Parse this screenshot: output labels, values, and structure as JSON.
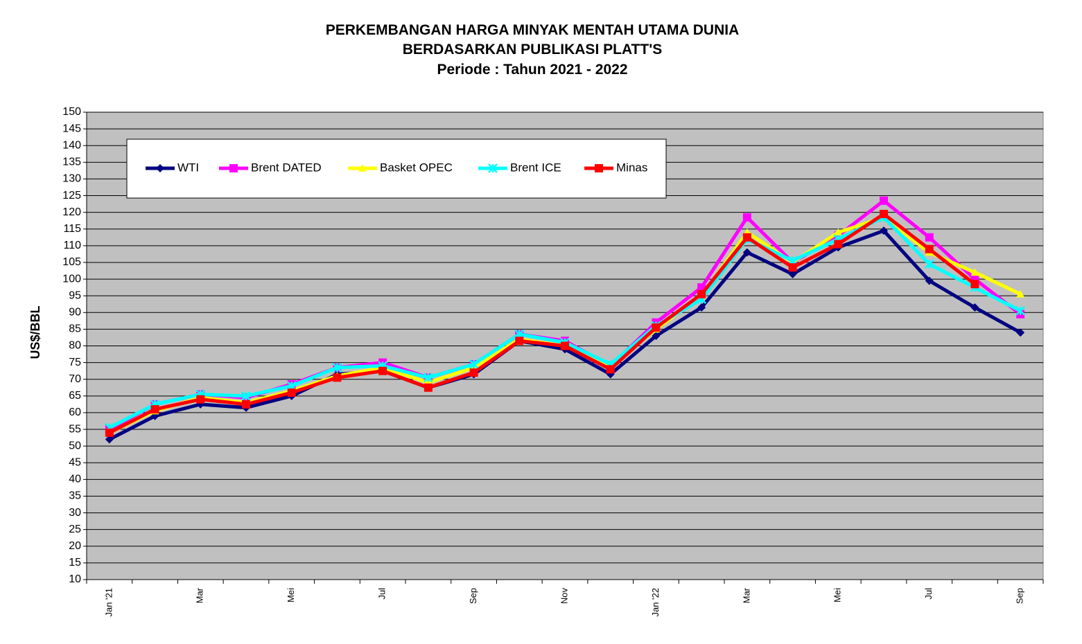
{
  "chart_data": {
    "type": "line",
    "title": [
      "PERKEMBANGAN HARGA MINYAK MENTAH UTAMA DUNIA",
      "BERDASARKAN PUBLIKASI PLATT'S",
      "Periode : Tahun 2021 - 2022"
    ],
    "y_label": "US$/BBL",
    "categories": [
      "Jan '21",
      null,
      "Mar",
      null,
      "Mei",
      null,
      "Jul",
      null,
      "Sep",
      null,
      "Nov",
      null,
      "Jan '22",
      null,
      "Mar",
      null,
      "Mei",
      null,
      "Jul",
      null,
      "Sep"
    ],
    "ylim": [
      10,
      150
    ],
    "yticks": [
      10,
      15,
      20,
      25,
      30,
      35,
      40,
      45,
      50,
      55,
      60,
      65,
      70,
      75,
      80,
      85,
      90,
      95,
      100,
      105,
      110,
      115,
      120,
      125,
      130,
      135,
      140,
      145,
      150
    ],
    "grid": true,
    "plot_background": "#c0c0c0",
    "legend_position": "top-left",
    "series": [
      {
        "name": "WTI",
        "color": "#000080",
        "marker": "diamond",
        "values": [
          52,
          59,
          62.5,
          61.5,
          65,
          71.5,
          72.5,
          67.5,
          71.5,
          81.5,
          79,
          71.5,
          83,
          91.5,
          108,
          101.5,
          109.5,
          114.5,
          99.5,
          91.5,
          84
        ]
      },
      {
        "name": "Brent DATED",
        "color": "#ff00ff",
        "marker": "square",
        "values": [
          55,
          62.5,
          65.5,
          64.5,
          68.5,
          73.5,
          75,
          70.5,
          74.5,
          83.5,
          81.5,
          74,
          87,
          97.5,
          118.5,
          105,
          113,
          123.5,
          112.5,
          100,
          89.5
        ]
      },
      {
        "name": "Basket OPEC",
        "color": "#ffff00",
        "marker": "triangle",
        "values": [
          54,
          60.5,
          64.5,
          63,
          66.5,
          71,
          73.5,
          69,
          73.5,
          82,
          80,
          74,
          85,
          95,
          114,
          105,
          114,
          118.5,
          108,
          102,
          95.5
        ]
      },
      {
        "name": "Brent ICE",
        "color": "#00ffff",
        "marker": "star",
        "values": [
          55.5,
          62.5,
          65.5,
          65,
          68,
          73.5,
          74,
          70.5,
          74.5,
          83.5,
          81,
          74.5,
          86,
          94,
          112,
          105.5,
          112,
          118.5,
          104.5,
          97.5,
          90.5
        ]
      },
      {
        "name": "Minas",
        "color": "#ff0000",
        "marker": "square",
        "values": [
          54,
          61,
          64,
          62.5,
          66,
          70.5,
          72.5,
          67.5,
          72,
          81.5,
          80,
          73,
          85.5,
          95.5,
          112.5,
          103.5,
          110.5,
          119.5,
          109,
          98.5,
          null
        ]
      }
    ]
  }
}
